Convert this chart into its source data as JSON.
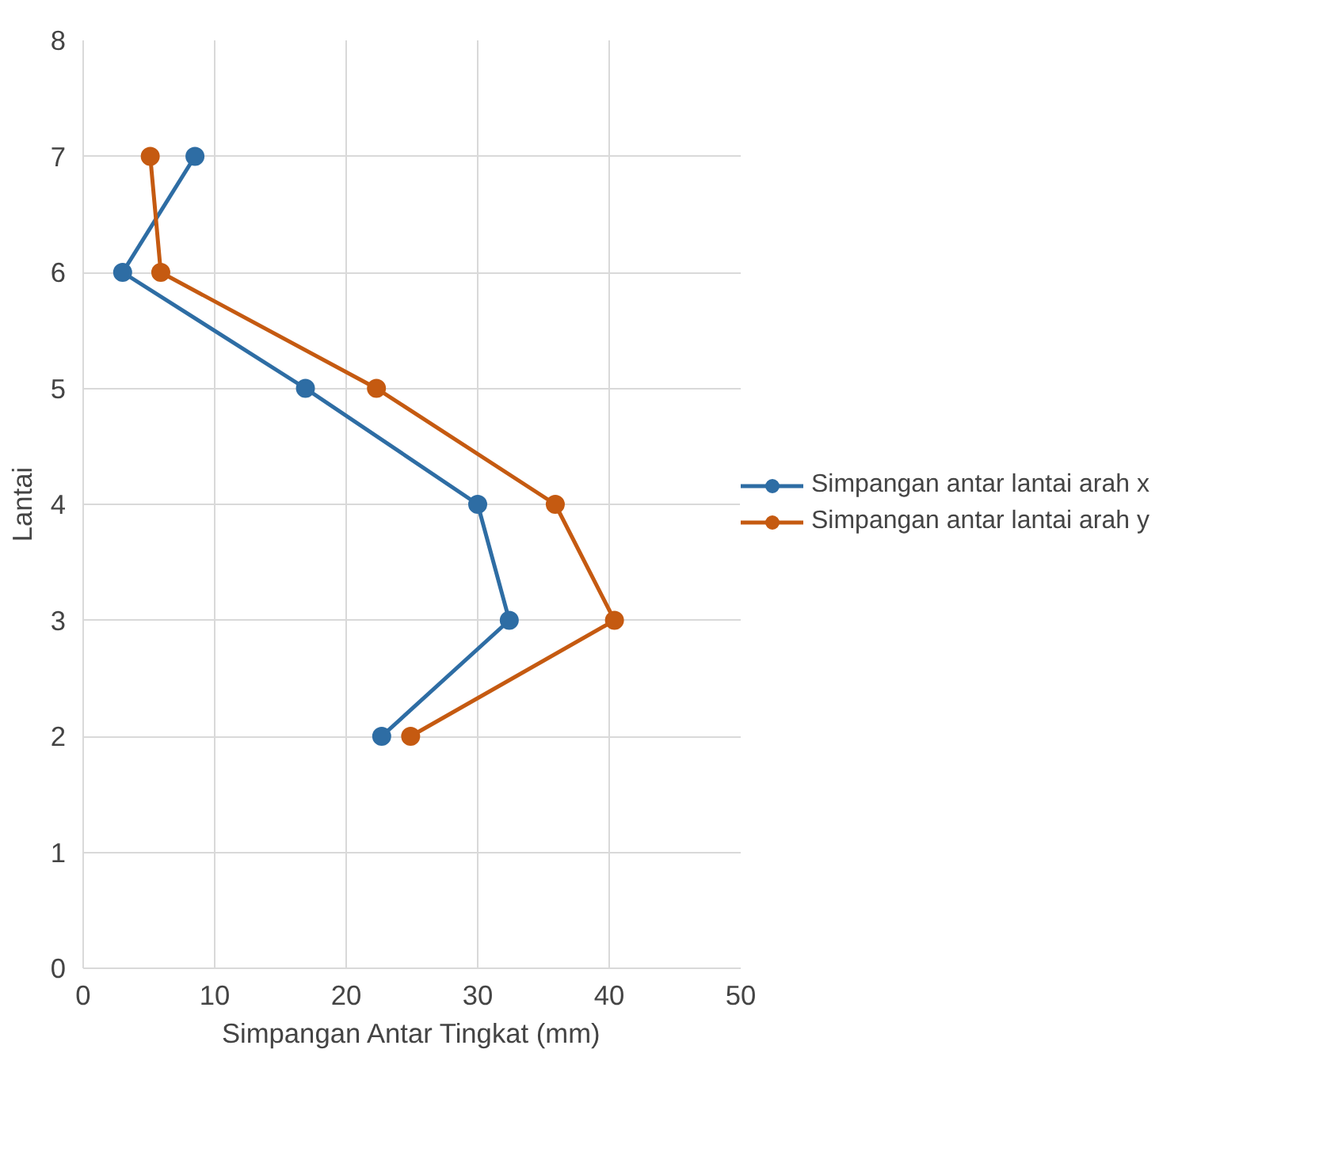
{
  "chart_data": {
    "type": "line",
    "xlabel": "Simpangan Antar Tingkat (mm)",
    "ylabel": "Lantai",
    "xlim": [
      0,
      50
    ],
    "xticks": [
      0,
      10,
      20,
      30,
      40,
      50
    ],
    "ylim": [
      0,
      8
    ],
    "yticks": [
      0,
      1,
      2,
      3,
      4,
      5,
      6,
      7,
      8
    ],
    "grid": true,
    "legend": "right",
    "marker": "circle",
    "line_style": "solid",
    "series": [
      {
        "name": "Simpangan antar lantai arah x",
        "color": "#2e6da4",
        "x": [
          8.5,
          3.0,
          16.9,
          30.0,
          32.4,
          22.7
        ],
        "values": [
          7,
          6,
          5,
          4,
          3,
          2
        ]
      },
      {
        "name": "Simpangan antar lantai arah y",
        "color": "#c55a11",
        "x": [
          5.1,
          5.9,
          22.3,
          35.9,
          40.4,
          24.9
        ],
        "values": [
          7,
          6,
          5,
          4,
          3,
          2
        ]
      }
    ]
  }
}
